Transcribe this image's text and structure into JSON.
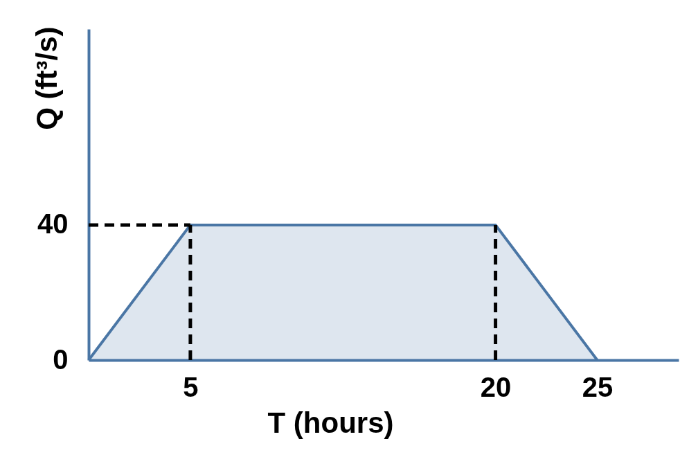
{
  "chart_data": {
    "type": "area",
    "xlabel": "T (hours)",
    "ylabel": "Q (ft³/s)",
    "x": [
      0,
      5,
      20,
      25
    ],
    "values": [
      0,
      40,
      40,
      0
    ],
    "color": "#4a76a5",
    "xlim": [
      0,
      29
    ],
    "ylim": [
      0,
      98
    ],
    "xticks": [
      5,
      20,
      25
    ],
    "yticks": [
      0,
      40
    ],
    "ref_lines": [
      {
        "axis": "x",
        "value": 5,
        "color": "#000000",
        "line_style": "dashed"
      },
      {
        "axis": "x",
        "value": 20,
        "color": "#000000",
        "line_style": "dashed"
      },
      {
        "axis": "y",
        "value": 40,
        "color": "#000000",
        "line_style": "dashed"
      }
    ]
  }
}
